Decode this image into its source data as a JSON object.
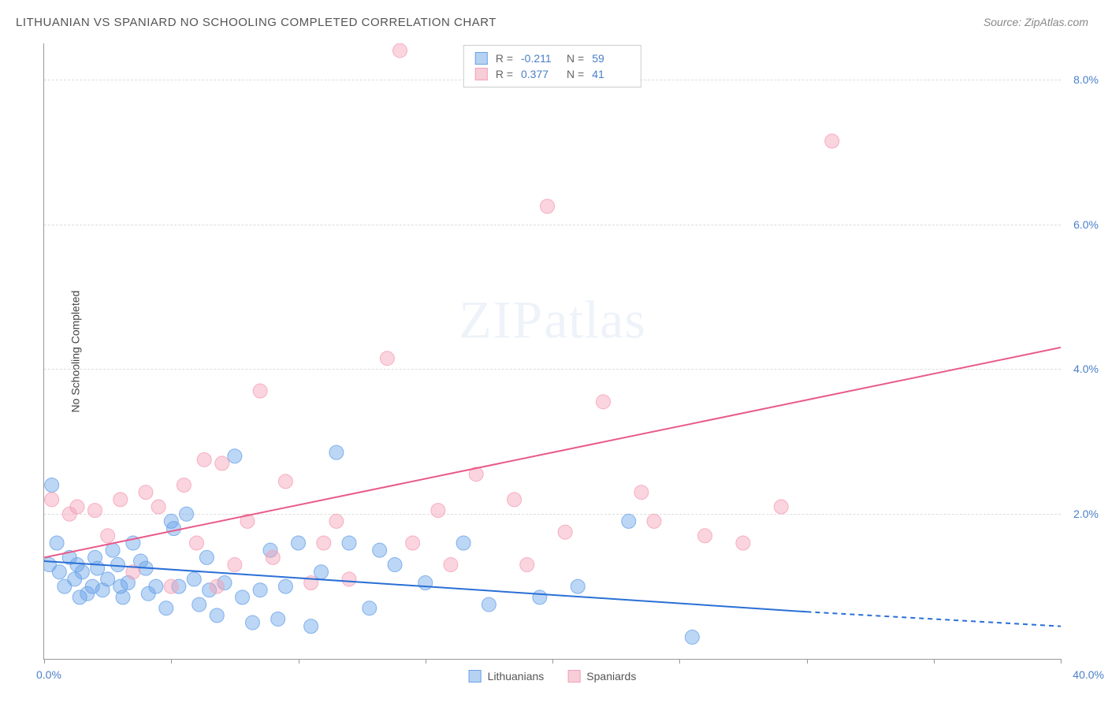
{
  "title": "LITHUANIAN VS SPANIARD NO SCHOOLING COMPLETED CORRELATION CHART",
  "source": "Source: ZipAtlas.com",
  "y_axis_label": "No Schooling Completed",
  "watermark": {
    "part1": "ZIP",
    "part2": "atlas"
  },
  "chart": {
    "type": "scatter",
    "xlim": [
      0,
      40
    ],
    "ylim": [
      0,
      8.5
    ],
    "x_ticks": [
      0,
      5,
      10,
      15,
      20,
      25,
      30,
      35,
      40
    ],
    "x_tick_labels": {
      "min": "0.0%",
      "max": "40.0%"
    },
    "y_ticks": [
      2,
      4,
      6,
      8
    ],
    "y_tick_labels": [
      "2.0%",
      "4.0%",
      "6.0%",
      "8.0%"
    ],
    "grid_color": "#dddddd",
    "background_color": "#ffffff",
    "marker_radius": 9,
    "marker_opacity": 0.45,
    "marker_stroke_opacity": 0.8,
    "line_width": 2,
    "series": [
      {
        "name": "Lithuanians",
        "color": "#6aa3e8",
        "line_color": "#2a6fd6",
        "R": "-0.211",
        "N": "59",
        "trend": {
          "x0": 0,
          "y0": 1.35,
          "x1": 30,
          "y1": 0.65,
          "dash_after_x": 30,
          "x2": 40,
          "y2": 0.45
        },
        "points": [
          [
            0.2,
            1.3
          ],
          [
            0.3,
            2.4
          ],
          [
            0.5,
            1.6
          ],
          [
            0.6,
            1.2
          ],
          [
            0.8,
            1.0
          ],
          [
            1.0,
            1.4
          ],
          [
            1.2,
            1.1
          ],
          [
            1.3,
            1.3
          ],
          [
            1.5,
            1.2
          ],
          [
            1.7,
            0.9
          ],
          [
            1.9,
            1.0
          ],
          [
            2.1,
            1.25
          ],
          [
            2.3,
            0.95
          ],
          [
            2.5,
            1.1
          ],
          [
            2.7,
            1.5
          ],
          [
            2.9,
            1.3
          ],
          [
            3.1,
            0.85
          ],
          [
            3.3,
            1.05
          ],
          [
            3.5,
            1.6
          ],
          [
            3.8,
            1.35
          ],
          [
            4.1,
            0.9
          ],
          [
            4.4,
            1.0
          ],
          [
            4.8,
            0.7
          ],
          [
            5.1,
            1.8
          ],
          [
            5.3,
            1.0
          ],
          [
            5.6,
            2.0
          ],
          [
            5.9,
            1.1
          ],
          [
            6.1,
            0.75
          ],
          [
            6.4,
            1.4
          ],
          [
            6.8,
            0.6
          ],
          [
            7.1,
            1.05
          ],
          [
            7.5,
            2.8
          ],
          [
            7.8,
            0.85
          ],
          [
            8.2,
            0.5
          ],
          [
            8.5,
            0.95
          ],
          [
            8.9,
            1.5
          ],
          [
            9.2,
            0.55
          ],
          [
            9.5,
            1.0
          ],
          [
            10.0,
            1.6
          ],
          [
            10.5,
            0.45
          ],
          [
            10.9,
            1.2
          ],
          [
            11.5,
            2.85
          ],
          [
            12.0,
            1.6
          ],
          [
            12.8,
            0.7
          ],
          [
            13.2,
            1.5
          ],
          [
            13.8,
            1.3
          ],
          [
            15.0,
            1.05
          ],
          [
            16.5,
            1.6
          ],
          [
            17.5,
            0.75
          ],
          [
            19.5,
            0.85
          ],
          [
            21.0,
            1.0
          ],
          [
            23.0,
            1.9
          ],
          [
            25.5,
            0.3
          ],
          [
            5.0,
            1.9
          ],
          [
            6.5,
            0.95
          ],
          [
            4.0,
            1.25
          ],
          [
            3.0,
            1.0
          ],
          [
            2.0,
            1.4
          ],
          [
            1.4,
            0.85
          ]
        ]
      },
      {
        "name": "Spaniards",
        "color": "#f5a0b5",
        "line_color": "#e85a8a",
        "R": "0.377",
        "N": "41",
        "trend": {
          "x0": 0,
          "y0": 1.4,
          "x1": 40,
          "y1": 4.3
        },
        "points": [
          [
            0.3,
            2.2
          ],
          [
            1.0,
            2.0
          ],
          [
            1.3,
            2.1
          ],
          [
            2.0,
            2.05
          ],
          [
            2.5,
            1.7
          ],
          [
            3.0,
            2.2
          ],
          [
            3.5,
            1.2
          ],
          [
            4.0,
            2.3
          ],
          [
            4.5,
            2.1
          ],
          [
            5.0,
            1.0
          ],
          [
            5.5,
            2.4
          ],
          [
            6.0,
            1.6
          ],
          [
            6.3,
            2.75
          ],
          [
            7.0,
            2.7
          ],
          [
            7.5,
            1.3
          ],
          [
            8.0,
            1.9
          ],
          [
            8.5,
            3.7
          ],
          [
            9.0,
            1.4
          ],
          [
            9.5,
            2.45
          ],
          [
            10.5,
            1.05
          ],
          [
            11.0,
            1.6
          ],
          [
            12.0,
            1.1
          ],
          [
            13.5,
            4.15
          ],
          [
            14.5,
            1.6
          ],
          [
            15.5,
            2.05
          ],
          [
            16.0,
            1.3
          ],
          [
            17.0,
            2.55
          ],
          [
            18.5,
            2.2
          ],
          [
            19.0,
            1.3
          ],
          [
            19.8,
            6.25
          ],
          [
            20.5,
            1.75
          ],
          [
            22.0,
            3.55
          ],
          [
            23.5,
            2.3
          ],
          [
            24.0,
            1.9
          ],
          [
            26.0,
            1.7
          ],
          [
            27.5,
            1.6
          ],
          [
            29.0,
            2.1
          ],
          [
            31.0,
            7.15
          ],
          [
            14.0,
            8.4
          ],
          [
            11.5,
            1.9
          ],
          [
            6.8,
            1.0
          ]
        ]
      }
    ]
  },
  "legend_bottom": [
    {
      "label": "Lithuanians",
      "fill": "#b5d2f2",
      "stroke": "#6aa3e8"
    },
    {
      "label": "Spaniards",
      "fill": "#f7cdd8",
      "stroke": "#f5a0b5"
    }
  ],
  "stat_box": [
    {
      "fill": "#b5d2f2",
      "stroke": "#6aa3e8",
      "R": "-0.211",
      "N": "59"
    },
    {
      "fill": "#f7cdd8",
      "stroke": "#f5a0b5",
      "R": "0.377",
      "N": "41"
    }
  ],
  "colors": {
    "title": "#555555",
    "source": "#888888",
    "axis_text": "#4a7fc8",
    "axis_line": "#999999"
  },
  "fontsize": {
    "title": 15,
    "labels": 14,
    "watermark": 68
  }
}
